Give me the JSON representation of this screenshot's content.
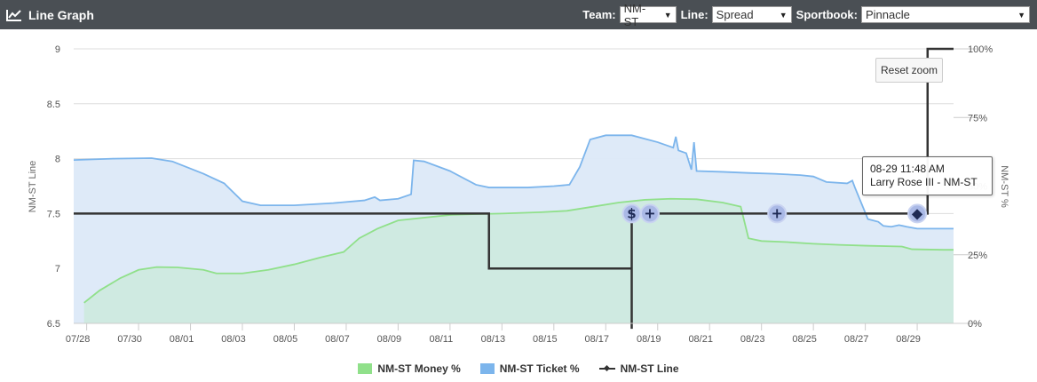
{
  "header": {
    "title": "Line Graph",
    "team_label": "Team:",
    "team_value": "NM-ST",
    "line_label": "Line:",
    "line_value": "Spread",
    "sportsbook_label": "Sportbook:",
    "sportsbook_value": "Pinnacle"
  },
  "reset_zoom_label": "Reset zoom",
  "tooltip": {
    "line1": "08-29 11:48 AM",
    "line2": "Larry Rose III - NM-ST"
  },
  "colors": {
    "header_bg": "#4a4f54",
    "money": "#90e08a",
    "money_fill": "#cdeadf",
    "ticket": "#7cb5ec",
    "ticket_fill": "#dce9f8",
    "line": "#333333"
  },
  "chart_data": {
    "type": "line",
    "x_type": "date",
    "x_ticks": [
      "07/28",
      "07/30",
      "08/01",
      "08/03",
      "08/05",
      "08/07",
      "08/09",
      "08/11",
      "08/13",
      "08/15",
      "08/17",
      "08/19",
      "08/21",
      "08/23",
      "08/25",
      "08/27",
      "08/29"
    ],
    "xlim": [
      27.5,
      61.4
    ],
    "y_left": {
      "label": "NM-ST Line",
      "range": [
        6.5,
        9
      ],
      "ticks": [
        "6.5",
        "7",
        "7.5",
        "8",
        "8.5",
        "9"
      ]
    },
    "y_right": {
      "label": "NM-ST %",
      "range": [
        0,
        100
      ],
      "ticks": [
        "0%",
        "25%",
        "50%",
        "75%",
        "100%"
      ]
    },
    "grid": true,
    "legend_position": "bottom-center",
    "series": [
      {
        "name": "NM-ST Money %",
        "axis": "right",
        "kind": "area",
        "points": [
          [
            27.9,
            7.5
          ],
          [
            28.5,
            12
          ],
          [
            29.3,
            16.5
          ],
          [
            30.0,
            19.5
          ],
          [
            30.7,
            20.5
          ],
          [
            31.5,
            20.4
          ],
          [
            32.5,
            19.5
          ],
          [
            33.0,
            18.2
          ],
          [
            34.0,
            18.2
          ],
          [
            35.0,
            19.5
          ],
          [
            36.0,
            21.5
          ],
          [
            37.0,
            24
          ],
          [
            37.9,
            26
          ],
          [
            38.5,
            31
          ],
          [
            39.2,
            34.5
          ],
          [
            40.0,
            37.5
          ],
          [
            41.0,
            38.5
          ],
          [
            42.0,
            39.5
          ],
          [
            43.0,
            39.8
          ],
          [
            44.0,
            40
          ],
          [
            45.5,
            40.5
          ],
          [
            46.5,
            41
          ],
          [
            47.5,
            42.5
          ],
          [
            48.5,
            44
          ],
          [
            49.5,
            45
          ],
          [
            50.5,
            45.4
          ],
          [
            51.5,
            45.2
          ],
          [
            52.5,
            44
          ],
          [
            53.2,
            42.5
          ],
          [
            53.5,
            31
          ],
          [
            54.0,
            30
          ],
          [
            55.0,
            29.6
          ],
          [
            56.0,
            29
          ],
          [
            57.0,
            28.6
          ],
          [
            58.0,
            28.3
          ],
          [
            59.4,
            28
          ],
          [
            59.8,
            27
          ],
          [
            61.0,
            26.8
          ],
          [
            61.4,
            26.8
          ]
        ]
      },
      {
        "name": "NM-ST Ticket %",
        "axis": "right",
        "kind": "area",
        "points": [
          [
            27.5,
            59.5
          ],
          [
            29.0,
            60
          ],
          [
            30.5,
            60.2
          ],
          [
            31.3,
            59
          ],
          [
            32.5,
            54.5
          ],
          [
            33.3,
            51
          ],
          [
            34.0,
            44.5
          ],
          [
            34.7,
            43
          ],
          [
            36.0,
            43
          ],
          [
            37.5,
            43.8
          ],
          [
            38.7,
            44.8
          ],
          [
            39.1,
            46
          ],
          [
            39.3,
            44.8
          ],
          [
            40.0,
            45.4
          ],
          [
            40.5,
            47
          ],
          [
            40.6,
            59.4
          ],
          [
            41.0,
            59
          ],
          [
            42.0,
            55.5
          ],
          [
            43.0,
            50.5
          ],
          [
            43.5,
            49.5
          ],
          [
            45.0,
            49.5
          ],
          [
            46.0,
            50
          ],
          [
            46.6,
            50.5
          ],
          [
            47.0,
            57
          ],
          [
            47.4,
            67
          ],
          [
            48.0,
            68.5
          ],
          [
            49.0,
            68.5
          ],
          [
            50.0,
            66
          ],
          [
            50.6,
            64
          ],
          [
            50.7,
            68
          ],
          [
            50.8,
            63
          ],
          [
            51.1,
            62
          ],
          [
            51.3,
            56
          ],
          [
            51.4,
            66
          ],
          [
            51.5,
            55.5
          ],
          [
            52.5,
            55.2
          ],
          [
            53.5,
            54.8
          ],
          [
            54.5,
            54.5
          ],
          [
            55.5,
            54
          ],
          [
            56.0,
            53.5
          ],
          [
            56.5,
            51.5
          ],
          [
            57.3,
            51
          ],
          [
            57.5,
            52
          ],
          [
            57.6,
            49.5
          ],
          [
            58.1,
            38
          ],
          [
            58.5,
            37
          ],
          [
            58.7,
            35.5
          ],
          [
            59.0,
            35.2
          ],
          [
            59.3,
            35.8
          ],
          [
            59.6,
            35.2
          ],
          [
            60.0,
            34.5
          ],
          [
            61.4,
            34.5
          ]
        ]
      },
      {
        "name": "NM-ST Line",
        "axis": "left",
        "kind": "step",
        "points": [
          [
            27.5,
            7.5
          ],
          [
            43.5,
            7.5
          ],
          [
            43.5,
            7.0
          ],
          [
            49.0,
            7.0
          ],
          [
            49.0,
            6.45
          ],
          [
            49.0,
            7.5
          ],
          [
            60.4,
            7.5
          ],
          [
            60.4,
            9.0
          ],
          [
            61.4,
            9.0
          ]
        ]
      }
    ],
    "markers": [
      {
        "x": 49.0,
        "y": 7.5,
        "symbol": "$"
      },
      {
        "x": 49.7,
        "y": 7.5,
        "symbol": "+"
      },
      {
        "x": 54.6,
        "y": 7.5,
        "symbol": "+"
      },
      {
        "x": 60.0,
        "y": 7.5,
        "symbol": "◆"
      }
    ]
  },
  "legend": {
    "money": "NM-ST Money %",
    "ticket": "NM-ST Ticket %",
    "line": "NM-ST Line"
  }
}
